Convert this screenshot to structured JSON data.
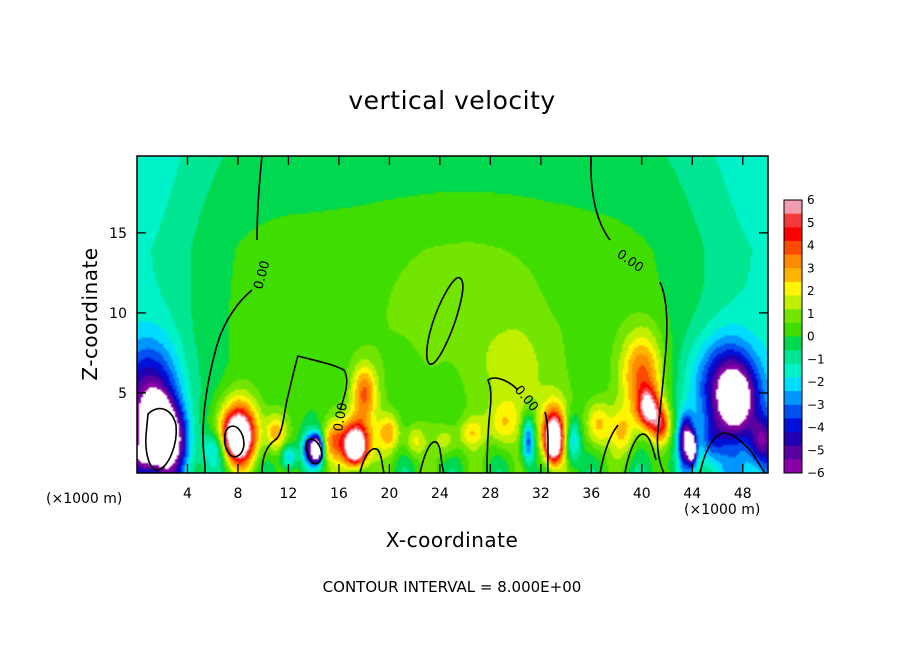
{
  "chart_data": {
    "type": "heatmap",
    "title": "vertical velocity",
    "xlabel": "X-coordinate",
    "ylabel": "Z-coordinate",
    "x_unit_label": "(×1000 m)",
    "footer": "CONTOUR INTERVAL = 8.000E+00",
    "xlim": [
      0,
      50
    ],
    "ylim": [
      0,
      19.8
    ],
    "x_ticks": [
      4,
      8,
      12,
      16,
      20,
      24,
      28,
      32,
      36,
      40,
      44,
      48
    ],
    "y_ticks": [
      5,
      10,
      15
    ],
    "colorbar": {
      "min": -6,
      "max": 6,
      "ticks": [
        6,
        5,
        4,
        3,
        2,
        1,
        0,
        -1,
        -2,
        -3,
        -4,
        -5,
        -6
      ],
      "tick_labels": [
        "6",
        "5",
        "4",
        "3",
        "2",
        "1",
        "0",
        "−1",
        "−2",
        "−3",
        "−4",
        "−5",
        "−6"
      ],
      "colors": [
        "#f39cae",
        "#f63a3a",
        "#fe0000",
        "#fc4b00",
        "#fe8a00",
        "#feb400",
        "#fef500",
        "#c0f000",
        "#72e500",
        "#40dd00",
        "#00d84f",
        "#00e692",
        "#00f2c8",
        "#00dcff",
        "#0096ff",
        "#0050f0",
        "#0010d8",
        "#2000b0",
        "#5a00a0",
        "#8a00a8"
      ]
    },
    "contour_labels": [
      "0.00",
      "0.00",
      "0.00",
      "0.00"
    ],
    "blobs": [
      {
        "x": 1.5,
        "z": 3.0,
        "rx": 1.0,
        "rz": 1.6,
        "v": -6.5
      },
      {
        "x": 2.5,
        "z": 2.0,
        "rx": 1.4,
        "rz": 2.0,
        "v": -5.5
      },
      {
        "x": 1.0,
        "z": 4.5,
        "rx": 2.2,
        "rz": 3.5,
        "v": -4.0
      },
      {
        "x": 0.5,
        "z": 1.0,
        "rx": 1.0,
        "rz": 1.0,
        "v": -3.0
      },
      {
        "x": 8.0,
        "z": 2.2,
        "rx": 1.0,
        "rz": 1.3,
        "v": 6.5
      },
      {
        "x": 8.0,
        "z": 2.6,
        "rx": 1.8,
        "rz": 2.2,
        "v": 4.5
      },
      {
        "x": 6.2,
        "z": 1.5,
        "rx": 1.0,
        "rz": 1.0,
        "v": -2.0
      },
      {
        "x": 11.0,
        "z": 2.5,
        "rx": 0.8,
        "rz": 1.2,
        "v": 2.5
      },
      {
        "x": 12.0,
        "z": 1.0,
        "rx": 0.6,
        "rz": 0.8,
        "v": -3.0
      },
      {
        "x": 13.8,
        "z": 1.5,
        "rx": 0.7,
        "rz": 1.0,
        "v": -5.0
      },
      {
        "x": 14.3,
        "z": 1.5,
        "rx": 0.4,
        "rz": 0.8,
        "v": -6.5
      },
      {
        "x": 15.5,
        "z": 2.0,
        "rx": 0.8,
        "rz": 1.2,
        "v": 2.5
      },
      {
        "x": 17.3,
        "z": 1.6,
        "rx": 0.8,
        "rz": 1.0,
        "v": 6.5
      },
      {
        "x": 17.3,
        "z": 2.0,
        "rx": 1.3,
        "rz": 1.6,
        "v": 4.5
      },
      {
        "x": 18.0,
        "z": 5.0,
        "rx": 1.0,
        "rz": 1.8,
        "v": 3.5
      },
      {
        "x": 20.0,
        "z": 2.5,
        "rx": 0.9,
        "rz": 1.2,
        "v": 2.5
      },
      {
        "x": 22.0,
        "z": 2.0,
        "rx": 0.8,
        "rz": 1.0,
        "v": 1.8
      },
      {
        "x": 24.5,
        "z": 2.0,
        "rx": 1.0,
        "rz": 1.0,
        "v": 1.5
      },
      {
        "x": 26.5,
        "z": 2.5,
        "rx": 1.0,
        "rz": 1.0,
        "v": 1.8
      },
      {
        "x": 29.0,
        "z": 3.0,
        "rx": 1.2,
        "rz": 1.5,
        "v": 2.0
      },
      {
        "x": 31.0,
        "z": 2.0,
        "rx": 0.5,
        "rz": 1.5,
        "v": -4.0
      },
      {
        "x": 33.0,
        "z": 2.0,
        "rx": 0.6,
        "rz": 1.2,
        "v": 6.5
      },
      {
        "x": 33.0,
        "z": 2.5,
        "rx": 1.1,
        "rz": 2.0,
        "v": 4.5
      },
      {
        "x": 34.5,
        "z": 2.0,
        "rx": 0.6,
        "rz": 1.5,
        "v": -3.0
      },
      {
        "x": 36.5,
        "z": 3.0,
        "rx": 1.0,
        "rz": 1.5,
        "v": 2.5
      },
      {
        "x": 38.5,
        "z": 2.5,
        "rx": 1.0,
        "rz": 1.5,
        "v": 2.0
      },
      {
        "x": 40.0,
        "z": 6.0,
        "rx": 1.6,
        "rz": 2.8,
        "v": 3.8
      },
      {
        "x": 40.5,
        "z": 4.0,
        "rx": 0.8,
        "rz": 1.2,
        "v": 5.0
      },
      {
        "x": 41.5,
        "z": 3.0,
        "rx": 0.8,
        "rz": 1.2,
        "v": 4.0
      },
      {
        "x": 43.5,
        "z": 2.0,
        "rx": 0.6,
        "rz": 1.5,
        "v": -5.5
      },
      {
        "x": 44.0,
        "z": 1.5,
        "rx": 0.3,
        "rz": 0.8,
        "v": -6.5
      },
      {
        "x": 46.5,
        "z": 5.5,
        "rx": 2.5,
        "rz": 3.0,
        "v": -3.8
      },
      {
        "x": 47.5,
        "z": 4.5,
        "rx": 1.5,
        "rz": 2.0,
        "v": -4.5
      },
      {
        "x": 49.5,
        "z": 2.0,
        "rx": 1.0,
        "rz": 1.5,
        "v": -3.5
      },
      {
        "x": 45.5,
        "z": 2.0,
        "rx": 1.0,
        "rz": 1.5,
        "v": -2.0
      },
      {
        "x": 26.0,
        "z": 11.0,
        "rx": 7.0,
        "rz": 5.0,
        "v": 0.7
      },
      {
        "x": 30.0,
        "z": 6.0,
        "rx": 3.0,
        "rz": 3.0,
        "v": 1.2
      }
    ],
    "background": {
      "interior": 0.3,
      "edge_left": -2.0,
      "edge_right": -2.0,
      "top": -0.4
    }
  }
}
